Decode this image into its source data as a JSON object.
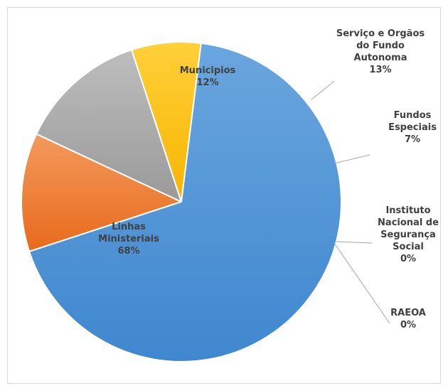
{
  "chart_data": {
    "type": "pie",
    "title": "",
    "legend": "none",
    "slices": [
      {
        "label": "Municipios",
        "value": 12,
        "display": "12%",
        "color": "#ED7D31",
        "label_color": "#404040"
      },
      {
        "label": "Serviço e Orgãos do Fundo Autonoma",
        "value": 13,
        "display": "13%",
        "color": "#A5A5A5",
        "label_color": "#404040"
      },
      {
        "label": "Fundos Especiais",
        "value": 7,
        "display": "7%",
        "color": "#FFC000",
        "label_color": "#404040"
      },
      {
        "label": "Instituto Nacional de Segurança Social",
        "value": 0,
        "display": "0%",
        "color": "#4472C4",
        "label_color": "#404040"
      },
      {
        "label": "RAEOA",
        "value": 0,
        "display": "0%",
        "color": "#264478",
        "label_color": "#404040"
      },
      {
        "label": "Linhas Ministeriais",
        "value": 68,
        "display": "68%",
        "color": "#5B9BD5",
        "label_color": "#404040"
      }
    ]
  }
}
